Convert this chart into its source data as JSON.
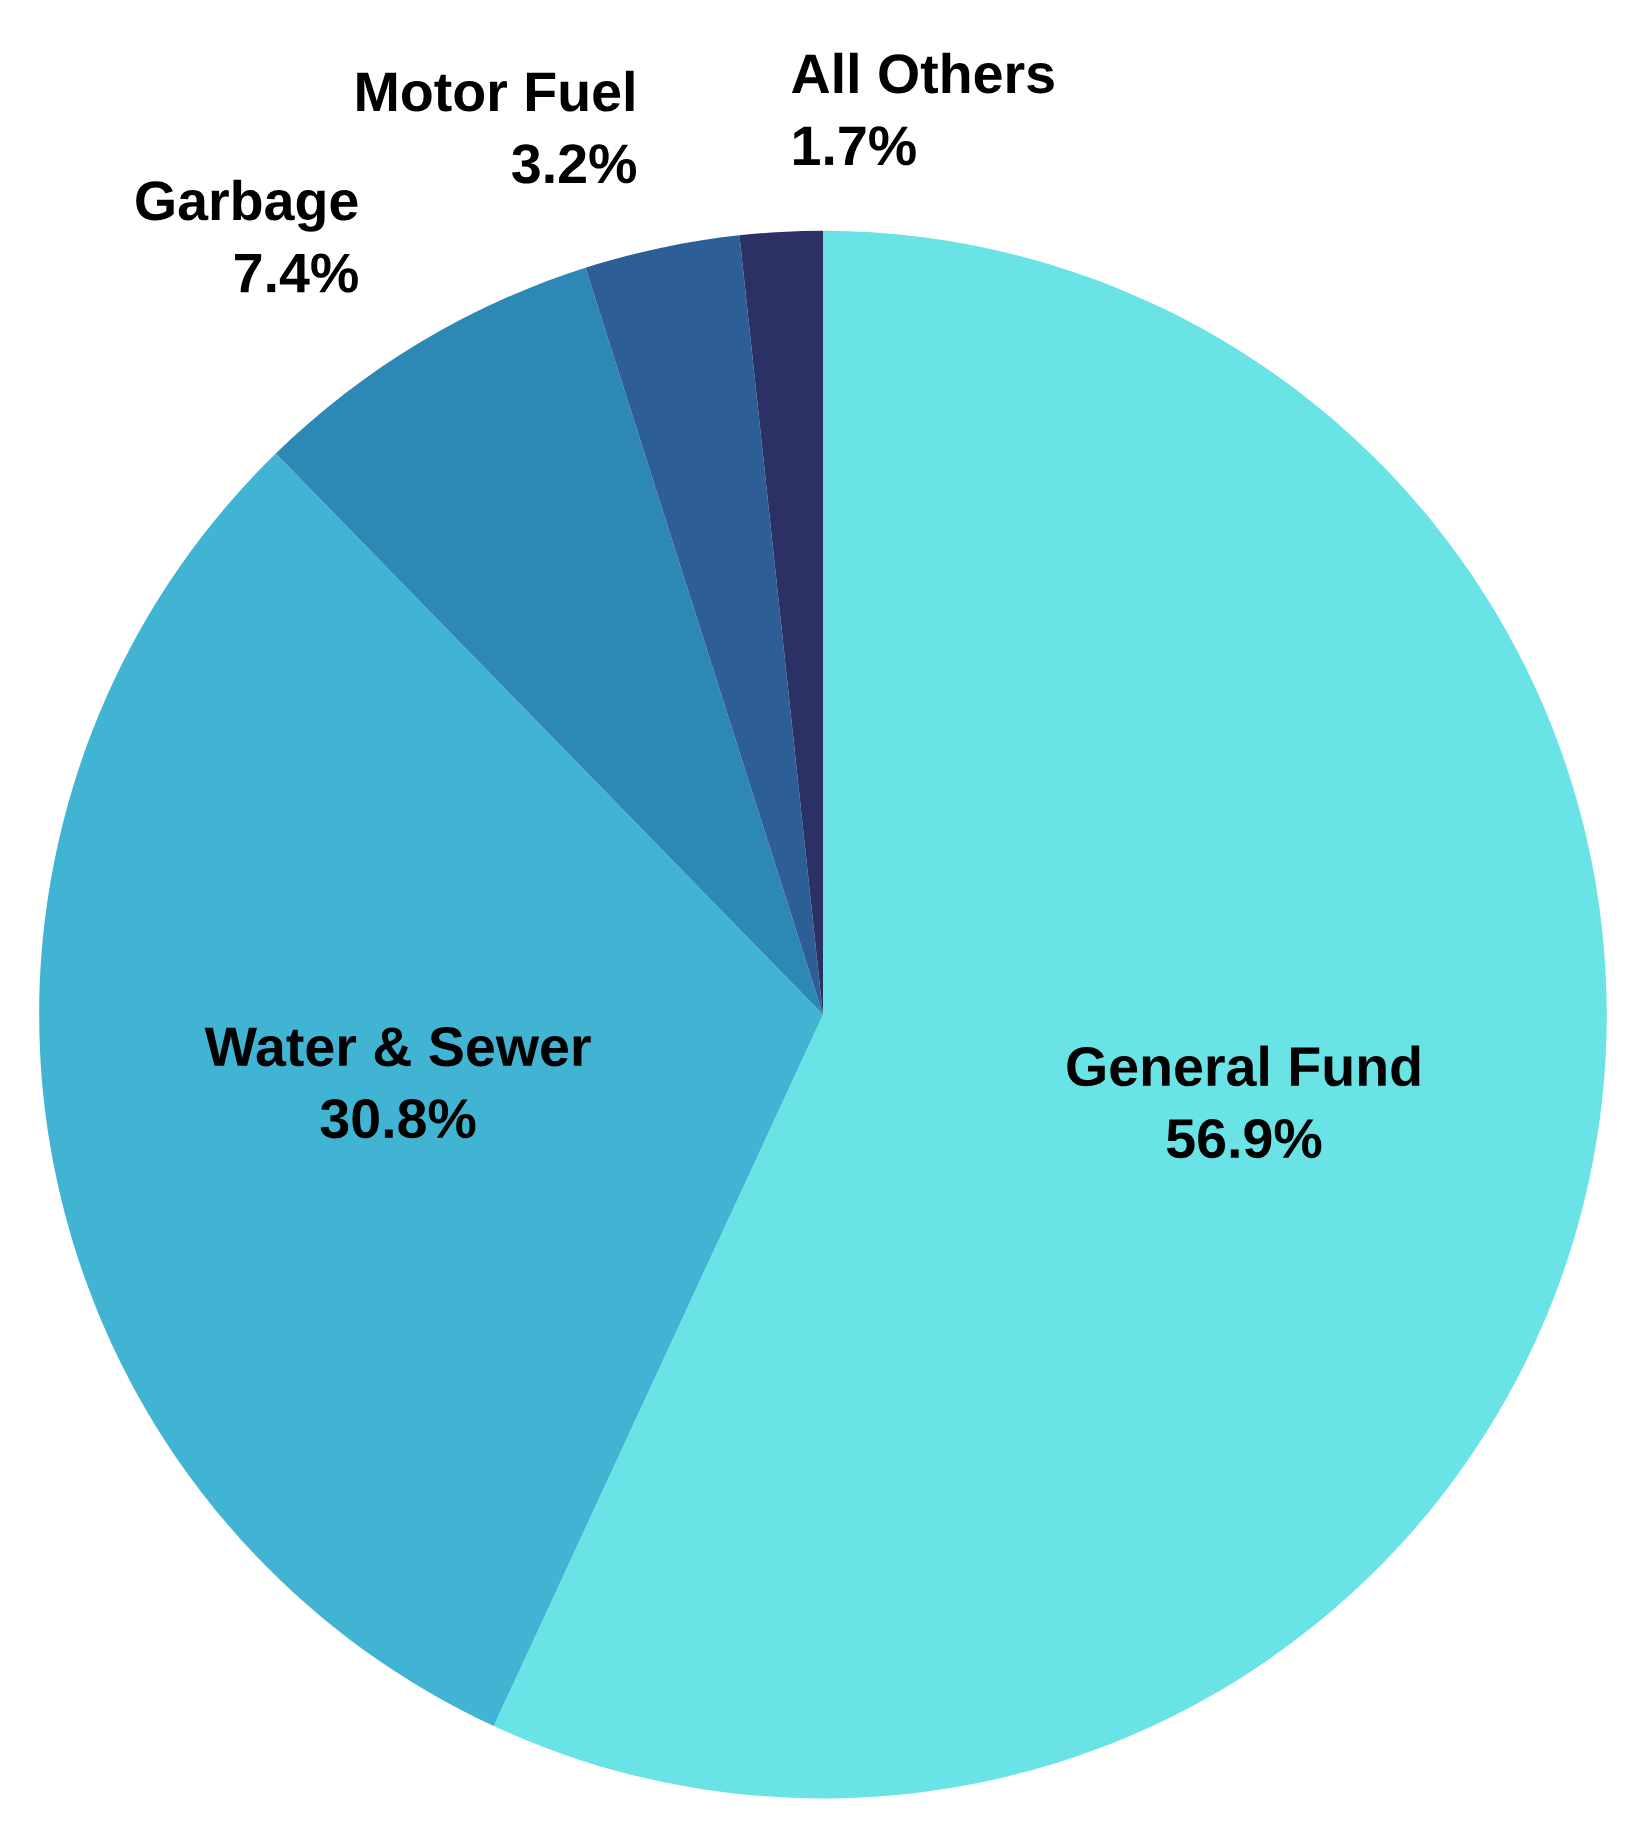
{
  "chart_data": {
    "type": "pie",
    "categories": [
      "General Fund",
      "Water & Sewer",
      "Garbage",
      "Motor Fuel",
      "All Others"
    ],
    "values": [
      56.9,
      30.8,
      7.4,
      3.2,
      1.7
    ],
    "value_labels": [
      "56.9%",
      "30.8%",
      "7.4%",
      "3.2%",
      "1.7%"
    ],
    "colors": [
      "#6ae3e6",
      "#42b4d3",
      "#2d88b5",
      "#2e5e96",
      "#2b3165"
    ],
    "legend": false
  }
}
